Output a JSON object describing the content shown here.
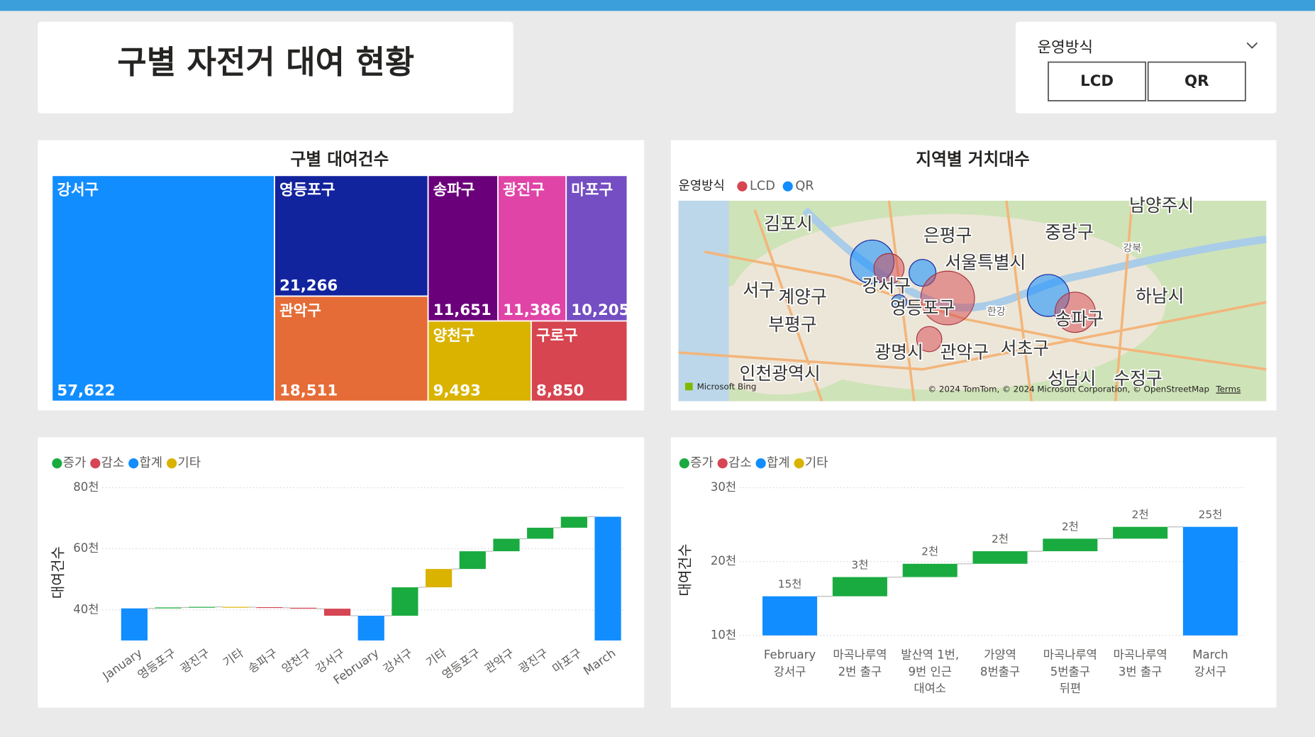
{
  "header": {
    "title": "구별 자전거 대여 현황"
  },
  "slicer": {
    "title": "운영방식",
    "options": [
      "LCD",
      "QR"
    ]
  },
  "chart_data": [
    {
      "type": "treemap",
      "title": "구별 대여건수",
      "categories": [
        "강서구",
        "영등포구",
        "관악구",
        "송파구",
        "광진구",
        "마포구",
        "양천구",
        "구로구"
      ],
      "values": [
        57622,
        21266,
        18511,
        11651,
        11386,
        10205,
        9493,
        8850
      ],
      "value_labels": [
        "57,622",
        "21,266",
        "18,511",
        "11,651",
        "11,386",
        "10,205",
        "9,493",
        "8,850"
      ],
      "colors": [
        "#118dff",
        "#12239e",
        "#e66c37",
        "#6b007b",
        "#e044a7",
        "#744ec2",
        "#d9b300",
        "#d64550"
      ]
    },
    {
      "type": "map",
      "title": "지역별 거치대수",
      "legend_title": "운영방식",
      "series": [
        {
          "name": "LCD",
          "color": "#d64550"
        },
        {
          "name": "QR",
          "color": "#118dff"
        }
      ],
      "places": [
        "김포시",
        "은평구",
        "중랑구",
        "남양주시",
        "서울특별시",
        "강서구",
        "서구",
        "계양구",
        "하남시",
        "영등포구",
        "송파구",
        "부평구",
        "광명시",
        "관악구",
        "서초구",
        "인천광역시",
        "성남시",
        "수정구",
        "한강",
        "강북"
      ],
      "provider": "Microsoft Bing",
      "attribution": "© 2024 TomTom, © 2024 Microsoft Corporation, © OpenStreetMap",
      "terms": "Terms"
    },
    {
      "type": "waterfall",
      "y_label": "대여건수",
      "series": [
        {
          "name": "증가",
          "color": "#1aab40"
        },
        {
          "name": "감소",
          "color": "#d64554"
        },
        {
          "name": "합계",
          "color": "#118dff"
        },
        {
          "name": "기타",
          "color": "#d9b300"
        }
      ],
      "categories": [
        "January",
        "영등포구",
        "광진구",
        "기타",
        "송파구",
        "양천구",
        "강서구",
        "February",
        "강서구",
        "기타",
        "영등포구",
        "관악구",
        "광진구",
        "마포구",
        "March"
      ],
      "values": [
        40500,
        300,
        200,
        -100,
        -200,
        -300,
        -2300,
        38100,
        9300,
        6000,
        5800,
        4100,
        3600,
        3600,
        70500
      ],
      "kinds": [
        "합계",
        "증가",
        "증가",
        "기타",
        "감소",
        "감소",
        "감소",
        "합계",
        "증가",
        "기타",
        "증가",
        "증가",
        "증가",
        "증가",
        "합계"
      ],
      "ylim": [
        30000,
        80000
      ],
      "yticks": [
        {
          "value": 40000,
          "label": "40천"
        },
        {
          "value": 60000,
          "label": "60천"
        },
        {
          "value": 80000,
          "label": "80천"
        }
      ],
      "grid": true
    },
    {
      "type": "waterfall",
      "y_label": "대여건수",
      "series": [
        {
          "name": "증가",
          "color": "#1aab40"
        },
        {
          "name": "감소",
          "color": "#d64554"
        },
        {
          "name": "합계",
          "color": "#118dff"
        },
        {
          "name": "기타",
          "color": "#d9b300"
        }
      ],
      "categories": [
        [
          "February",
          "강서구"
        ],
        [
          "마곡나루역",
          "2번 출구"
        ],
        [
          "발산역 1번,",
          "9번 인근",
          "대여소"
        ],
        [
          "가양역",
          "8번출구"
        ],
        [
          "마곡나루역",
          "5번출구",
          "뒤편"
        ],
        [
          "마곡나루역",
          "3번 출구"
        ],
        [
          "March",
          "강서구"
        ]
      ],
      "values": [
        15300,
        2600,
        1800,
        1700,
        1700,
        1600,
        24700
      ],
      "value_labels": [
        "15천",
        "3천",
        "2천",
        "2천",
        "2천",
        "2천",
        "25천"
      ],
      "kinds": [
        "합계",
        "증가",
        "증가",
        "증가",
        "증가",
        "증가",
        "합계"
      ],
      "ylim": [
        10000,
        30000
      ],
      "yticks": [
        {
          "value": 10000,
          "label": "10천"
        },
        {
          "value": 20000,
          "label": "20천"
        },
        {
          "value": 30000,
          "label": "30천"
        }
      ],
      "grid": true
    }
  ]
}
